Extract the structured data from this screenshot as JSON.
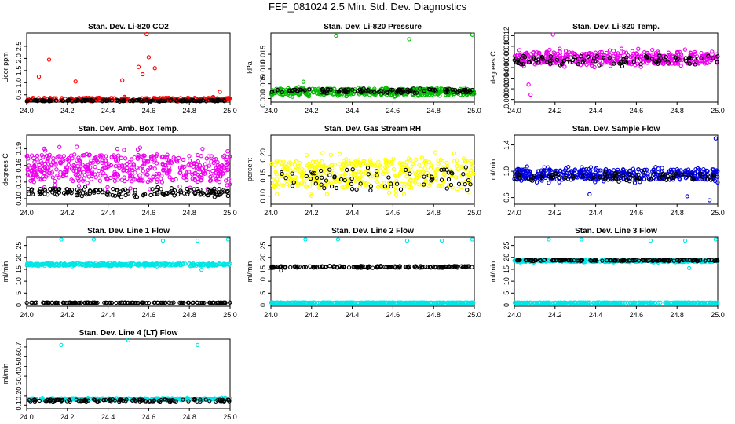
{
  "title": "FEF_081024  2.5 Min. Std. Dev. Diagnostics",
  "chart_data": [
    {
      "type": "scatter",
      "title": "Stan. Dev. Li-820 CO2",
      "ylabel": "Licor ppm",
      "xlim": [
        24.0,
        25.0
      ],
      "ylim": [
        0.2,
        3.05
      ],
      "xticks": [
        24.0,
        24.2,
        24.4,
        24.6,
        24.8,
        25.0
      ],
      "xtick_labels": [
        "24.0",
        "24.2",
        "24.4",
        "24.6",
        "24.8",
        "25.0"
      ],
      "yticks": [
        0.5,
        1.0,
        1.5,
        2.0,
        2.5
      ],
      "ytick_labels": [
        "0.5",
        "1.0",
        "1.5",
        "2.0",
        "2.5"
      ],
      "series": [
        {
          "name": "colored",
          "color": "#ff0000",
          "base": 0.32,
          "spread": 0.12,
          "n": 260,
          "spikes": [
            [
              24.11,
              1.95
            ],
            [
              24.06,
              1.25
            ],
            [
              24.24,
              1.05
            ],
            [
              24.47,
              1.1
            ],
            [
              24.59,
              3.0
            ],
            [
              24.55,
              1.65
            ],
            [
              24.57,
              1.35
            ],
            [
              24.6,
              2.05
            ],
            [
              24.63,
              1.6
            ],
            [
              24.95,
              0.62
            ]
          ]
        },
        {
          "name": "black",
          "color": "#000000",
          "base": 0.26,
          "spread": 0.05,
          "n": 150,
          "spikes": []
        }
      ]
    },
    {
      "type": "scatter",
      "title": "Stan. Dev. Li-820 Pressure",
      "ylabel": "kPa",
      "xlim": [
        24.0,
        25.0
      ],
      "ylim": [
        -0.0012,
        0.0222
      ],
      "xticks": [
        24.0,
        24.2,
        24.4,
        24.6,
        24.8,
        25.0
      ],
      "xtick_labels": [
        "24.0",
        "24.2",
        "24.4",
        "24.6",
        "24.8",
        "25.0"
      ],
      "yticks": [
        0.0,
        0.005,
        0.01,
        0.015
      ],
      "ytick_labels": [
        "0.000",
        "0.005",
        "0.010",
        "0.015"
      ],
      "series": [
        {
          "name": "colored",
          "color": "#00bb00",
          "base": 0.0023,
          "spread": 0.0021,
          "n": 420,
          "spikes": [
            [
              24.32,
              0.0213
            ],
            [
              24.68,
              0.0201
            ],
            [
              24.99,
              0.0216
            ],
            [
              24.16,
              0.0057
            ]
          ]
        },
        {
          "name": "black",
          "color": "#000000",
          "base": 0.0025,
          "spread": 0.0012,
          "n": 120,
          "spikes": []
        }
      ]
    },
    {
      "type": "scatter",
      "title": "Stan. Dev. Li-820 Temp.",
      "ylabel": "degrees C",
      "xlim": [
        24.0,
        25.0
      ],
      "ylim": [
        -0.0005,
        0.0125
      ],
      "xticks": [
        24.0,
        24.2,
        24.4,
        24.6,
        24.8,
        25.0
      ],
      "xtick_labels": [
        "24.0",
        "24.2",
        "24.4",
        "24.6",
        "24.8",
        "25.0"
      ],
      "yticks": [
        0.0,
        0.002,
        0.004,
        0.006,
        0.008,
        0.01,
        0.012
      ],
      "ytick_labels": [
        "0.000",
        "0.002",
        "0.004",
        "0.006",
        "0.008",
        "0.010",
        "0.012"
      ],
      "series": [
        {
          "name": "colored",
          "color": "#ee00ee",
          "base": 0.0078,
          "spread": 0.0022,
          "n": 420,
          "spikes": [
            [
              24.08,
              0.0009
            ],
            [
              24.19,
              0.0122
            ],
            [
              24.07,
              0.0028
            ]
          ]
        },
        {
          "name": "black",
          "color": "#000000",
          "base": 0.0074,
          "spread": 0.0016,
          "n": 90,
          "spikes": []
        }
      ]
    },
    {
      "type": "scatter",
      "title": "Stan. Dev. Amb. Box Temp.",
      "ylabel": "degrees C",
      "xlim": [
        24.0,
        25.0
      ],
      "ylim": [
        0.09,
        0.215
      ],
      "xticks": [
        24.0,
        24.2,
        24.4,
        24.6,
        24.8,
        25.0
      ],
      "xtick_labels": [
        "24.0",
        "24.2",
        "24.4",
        "24.6",
        "24.8",
        "25.0"
      ],
      "yticks": [
        0.1,
        0.13,
        0.16,
        0.19
      ],
      "ytick_labels": [
        "0.10",
        "0.13",
        "0.16",
        "0.19"
      ],
      "series": [
        {
          "name": "colored",
          "color": "#ee00ee",
          "base": 0.155,
          "spread": 0.05,
          "n": 480,
          "spikes": []
        },
        {
          "name": "black",
          "color": "#000000",
          "base": 0.112,
          "spread": 0.012,
          "n": 160,
          "spikes": []
        }
      ]
    },
    {
      "type": "scatter",
      "title": "Stan. Dev. Gas Stream RH",
      "ylabel": "percent",
      "xlim": [
        24.0,
        25.0
      ],
      "ylim": [
        0.08,
        0.25
      ],
      "xticks": [
        24.0,
        24.2,
        24.4,
        24.6,
        24.8,
        25.0
      ],
      "xtick_labels": [
        "24.0",
        "24.2",
        "24.4",
        "24.6",
        "24.8",
        "25.0"
      ],
      "yticks": [
        0.1,
        0.15,
        0.2
      ],
      "ytick_labels": [
        "0.10",
        "0.15",
        "0.20"
      ],
      "series": [
        {
          "name": "colored",
          "color": "#ffff00",
          "base": 0.155,
          "spread": 0.07,
          "n": 420,
          "spikes": []
        },
        {
          "name": "black",
          "color": "#000000",
          "base": 0.14,
          "spread": 0.05,
          "n": 70,
          "spikes": []
        }
      ]
    },
    {
      "type": "scatter",
      "title": "Stan. Dev. Sample Flow",
      "ylabel": "ml/min",
      "xlim": [
        24.0,
        25.0
      ],
      "ylim": [
        0.5,
        1.55
      ],
      "xticks": [
        24.0,
        24.2,
        24.4,
        24.6,
        24.8,
        25.0
      ],
      "xtick_labels": [
        "24.0",
        "24.2",
        "24.4",
        "24.6",
        "24.8",
        "25.0"
      ],
      "yticks": [
        0.6,
        1.0,
        1.4
      ],
      "ytick_labels": [
        "0.6",
        "1.0",
        "1.4"
      ],
      "series": [
        {
          "name": "colored",
          "color": "#0000dd",
          "base": 0.95,
          "spread": 0.16,
          "n": 420,
          "spikes": [
            [
              24.99,
              1.5
            ],
            [
              24.37,
              0.65
            ],
            [
              24.96,
              0.56
            ],
            [
              24.85,
              0.62
            ]
          ]
        },
        {
          "name": "black",
          "color": "#000000",
          "base": 0.92,
          "spread": 0.1,
          "n": 90,
          "spikes": []
        }
      ]
    },
    {
      "type": "scatter",
      "title": "Stan. Dev. Line 1 Flow",
      "ylabel": "ml/min",
      "xlim": [
        24.0,
        25.0
      ],
      "ylim": [
        -0.5,
        28.5
      ],
      "xticks": [
        24.0,
        24.2,
        24.4,
        24.6,
        24.8,
        25.0
      ],
      "xtick_labels": [
        "24.0",
        "24.2",
        "24.4",
        "24.6",
        "24.8",
        "25.0"
      ],
      "yticks": [
        0,
        5,
        10,
        15,
        20,
        25
      ],
      "ytick_labels": [
        "0",
        "5",
        "10",
        "15",
        "20",
        "25"
      ],
      "series": [
        {
          "name": "colored",
          "color": "#00e5e5",
          "base": 17.0,
          "spread": 0.9,
          "n": 380,
          "spikes": [
            [
              24.17,
              27.5
            ],
            [
              24.33,
              27.5
            ],
            [
              24.67,
              27.0
            ],
            [
              24.84,
              27.0
            ],
            [
              24.99,
              27.5
            ],
            [
              24.86,
              14.8
            ]
          ]
        },
        {
          "name": "black",
          "color": "#000000",
          "base": 1.0,
          "spread": 0.15,
          "n": 150,
          "spikes": []
        }
      ]
    },
    {
      "type": "scatter",
      "title": "Stan. Dev. Line 2 Flow",
      "ylabel": "ml/min",
      "xlim": [
        24.0,
        25.0
      ],
      "ylim": [
        -0.5,
        28.5
      ],
      "xticks": [
        24.0,
        24.2,
        24.4,
        24.6,
        24.8,
        25.0
      ],
      "xtick_labels": [
        "24.0",
        "24.2",
        "24.4",
        "24.6",
        "24.8",
        "25.0"
      ],
      "yticks": [
        0,
        5,
        10,
        15,
        20,
        25
      ],
      "ytick_labels": [
        "0",
        "5",
        "10",
        "15",
        "20",
        "25"
      ],
      "series": [
        {
          "name": "black",
          "color": "#000000",
          "base": 16.0,
          "spread": 0.7,
          "n": 150,
          "spikes": [
            [
              24.05,
              14.5
            ]
          ]
        },
        {
          "name": "colored",
          "color": "#00e5e5",
          "base": 1.0,
          "spread": 0.15,
          "n": 380,
          "spikes": [
            [
              24.17,
              27.5
            ],
            [
              24.33,
              27.5
            ],
            [
              24.67,
              27.0
            ],
            [
              24.84,
              27.0
            ],
            [
              24.99,
              27.5
            ]
          ]
        }
      ]
    },
    {
      "type": "scatter",
      "title": "Stan. Dev. Line 3 Flow",
      "ylabel": "ml/min",
      "xlim": [
        24.0,
        25.0
      ],
      "ylim": [
        -0.5,
        28.5
      ],
      "xticks": [
        24.0,
        24.2,
        24.4,
        24.6,
        24.8,
        25.0
      ],
      "xtick_labels": [
        "24.0",
        "24.2",
        "24.4",
        "24.6",
        "24.8",
        "25.0"
      ],
      "yticks": [
        0,
        5,
        10,
        15,
        20,
        25
      ],
      "ytick_labels": [
        "0",
        "5",
        "10",
        "15",
        "20",
        "25"
      ],
      "series": [
        {
          "name": "colored",
          "color": "#00e5e5",
          "base": 18.5,
          "spread": 0.8,
          "n": 300,
          "spikes": [
            [
              24.17,
              27.5
            ],
            [
              24.33,
              27.5
            ],
            [
              24.67,
              27.0
            ],
            [
              24.84,
              27.0
            ],
            [
              24.99,
              27.5
            ],
            [
              24.86,
              15.5
            ]
          ]
        },
        {
          "name": "black",
          "color": "#000000",
          "base": 18.8,
          "spread": 0.5,
          "n": 150,
          "spikes": []
        },
        {
          "name": "colored-low",
          "color": "#00e5e5",
          "base": 1.0,
          "spread": 0.15,
          "n": 300,
          "spikes": []
        }
      ]
    },
    {
      "type": "scatter",
      "title": "Stan. Dev. Line 4 (LT) Flow",
      "ylabel": "ml/min",
      "xlim": [
        24.0,
        25.0
      ],
      "ylim": [
        0.07,
        0.78
      ],
      "xticks": [
        24.0,
        24.2,
        24.4,
        24.6,
        24.8,
        25.0
      ],
      "xtick_labels": [
        "24.0",
        "24.2",
        "24.4",
        "24.6",
        "24.8",
        "25.0"
      ],
      "yticks": [
        0.1,
        0.2,
        0.3,
        0.4,
        0.5,
        0.6,
        0.7
      ],
      "ytick_labels": [
        "0.1",
        "0.2",
        "0.3",
        "0.4",
        "0.5",
        "0.6",
        "0.7"
      ],
      "series": [
        {
          "name": "colored",
          "color": "#00e5e5",
          "base": 0.165,
          "spread": 0.02,
          "n": 320,
          "spikes": [
            [
              24.17,
              0.72
            ],
            [
              24.5,
              0.77
            ],
            [
              24.84,
              0.72
            ]
          ]
        },
        {
          "name": "black",
          "color": "#000000",
          "base": 0.15,
          "spread": 0.02,
          "n": 120,
          "spikes": []
        }
      ]
    }
  ]
}
